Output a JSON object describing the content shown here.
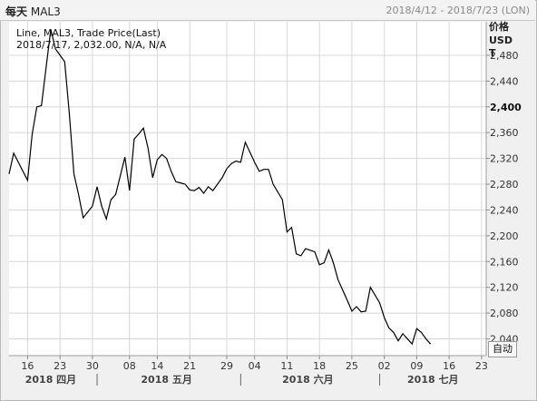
{
  "header": {
    "period": "每天",
    "symbol": "MAL3",
    "date_range": "2018/4/12 - 2018/7/23 (LON)"
  },
  "legend": {
    "line1": "Line, MAL3, Trade Price(Last)",
    "line2": "2018/7/17, 2,032.00, N/A, N/A"
  },
  "axis_units": [
    "价格",
    "USD",
    "T"
  ],
  "auto_button_label": "自动",
  "colors": {
    "line": "#000000",
    "grid": "#d8d8d8",
    "plot_bg": "#ffffff",
    "page_bg": "#f0f0f0"
  },
  "chart_data": {
    "type": "line",
    "title": "",
    "xlabel": "",
    "ylabel": "价格 USD T",
    "ylim": [
      2014,
      2532
    ],
    "y_ticks": [
      2040,
      2080,
      2120,
      2160,
      2200,
      2240,
      2280,
      2320,
      2360,
      2400,
      2440,
      2480
    ],
    "y_tick_labels": [
      "2,040",
      "2,080",
      "2,120",
      "2,160",
      "2,200",
      "2,240",
      "2,280",
      "2,320",
      "2,360",
      "2,400",
      "2,440",
      "2,480"
    ],
    "y_bold_tick": "2,400",
    "grid": true,
    "x_range": [
      "2018-04-12",
      "2018-07-24"
    ],
    "x_ticks": [
      {
        "date": "2018-04-16",
        "label": "16"
      },
      {
        "date": "2018-04-23",
        "label": "23"
      },
      {
        "date": "2018-04-30",
        "label": "30"
      },
      {
        "date": "2018-05-08",
        "label": "08"
      },
      {
        "date": "2018-05-14",
        "label": "14"
      },
      {
        "date": "2018-05-21",
        "label": "21"
      },
      {
        "date": "2018-05-29",
        "label": "29"
      },
      {
        "date": "2018-06-04",
        "label": "04"
      },
      {
        "date": "2018-06-11",
        "label": "11"
      },
      {
        "date": "2018-06-18",
        "label": "18"
      },
      {
        "date": "2018-06-25",
        "label": "25"
      },
      {
        "date": "2018-07-02",
        "label": "02"
      },
      {
        "date": "2018-07-09",
        "label": "09"
      },
      {
        "date": "2018-07-16",
        "label": "16"
      },
      {
        "date": "2018-07-23",
        "label": "23"
      }
    ],
    "months": [
      {
        "label": "2018 四月",
        "start": "2018-04-12",
        "end": "2018-04-30"
      },
      {
        "label": "2018 五月",
        "start": "2018-05-01",
        "end": "2018-05-31"
      },
      {
        "label": "2018 六月",
        "start": "2018-06-01",
        "end": "2018-06-30"
      },
      {
        "label": "2018 七月",
        "start": "2018-07-01",
        "end": "2018-07-24"
      }
    ],
    "series": [
      {
        "points": [
          [
            "2018-04-12",
            2296
          ],
          [
            "2018-04-13",
            2328
          ],
          [
            "2018-04-16",
            2286
          ],
          [
            "2018-04-17",
            2358
          ],
          [
            "2018-04-18",
            2400
          ],
          [
            "2018-04-19",
            2402
          ],
          [
            "2018-04-20",
            2462
          ],
          [
            "2018-04-21",
            2520
          ],
          [
            "2018-04-22",
            2490
          ],
          [
            "2018-04-23",
            2480
          ],
          [
            "2018-04-24",
            2470
          ],
          [
            "2018-04-25",
            2390
          ],
          [
            "2018-04-26",
            2296
          ],
          [
            "2018-04-27",
            2264
          ],
          [
            "2018-04-28",
            2228
          ],
          [
            "2018-04-30",
            2246
          ],
          [
            "2018-05-01",
            2276
          ],
          [
            "2018-05-02",
            2246
          ],
          [
            "2018-05-03",
            2226
          ],
          [
            "2018-05-04",
            2256
          ],
          [
            "2018-05-05",
            2264
          ],
          [
            "2018-05-07",
            2322
          ],
          [
            "2018-05-08",
            2270
          ],
          [
            "2018-05-09",
            2350
          ],
          [
            "2018-05-10",
            2358
          ],
          [
            "2018-05-11",
            2367
          ],
          [
            "2018-05-12",
            2336
          ],
          [
            "2018-05-13",
            2290
          ],
          [
            "2018-05-14",
            2318
          ],
          [
            "2018-05-15",
            2326
          ],
          [
            "2018-05-16",
            2320
          ],
          [
            "2018-05-17",
            2300
          ],
          [
            "2018-05-18",
            2284
          ],
          [
            "2018-05-20",
            2280
          ],
          [
            "2018-05-21",
            2271
          ],
          [
            "2018-05-22",
            2270
          ],
          [
            "2018-05-23",
            2275
          ],
          [
            "2018-05-24",
            2266
          ],
          [
            "2018-05-25",
            2276
          ],
          [
            "2018-05-26",
            2270
          ],
          [
            "2018-05-28",
            2290
          ],
          [
            "2018-05-29",
            2304
          ],
          [
            "2018-05-30",
            2312
          ],
          [
            "2018-05-31",
            2316
          ],
          [
            "2018-06-01",
            2314
          ],
          [
            "2018-06-02",
            2345
          ],
          [
            "2018-06-04",
            2314
          ],
          [
            "2018-06-05",
            2300
          ],
          [
            "2018-06-06",
            2303
          ],
          [
            "2018-06-07",
            2303
          ],
          [
            "2018-06-08",
            2280
          ],
          [
            "2018-06-10",
            2256
          ],
          [
            "2018-06-11",
            2206
          ],
          [
            "2018-06-12",
            2213
          ],
          [
            "2018-06-13",
            2172
          ],
          [
            "2018-06-14",
            2169
          ],
          [
            "2018-06-15",
            2180
          ],
          [
            "2018-06-17",
            2175
          ],
          [
            "2018-06-18",
            2155
          ],
          [
            "2018-06-19",
            2158
          ],
          [
            "2018-06-20",
            2178
          ],
          [
            "2018-06-21",
            2158
          ],
          [
            "2018-06-22",
            2132
          ],
          [
            "2018-06-24",
            2100
          ],
          [
            "2018-06-25",
            2083
          ],
          [
            "2018-06-26",
            2090
          ],
          [
            "2018-06-27",
            2082
          ],
          [
            "2018-06-28",
            2083
          ],
          [
            "2018-06-29",
            2120
          ],
          [
            "2018-07-01",
            2096
          ],
          [
            "2018-07-02",
            2073
          ],
          [
            "2018-07-03",
            2057
          ],
          [
            "2018-07-04",
            2050
          ],
          [
            "2018-07-05",
            2037
          ],
          [
            "2018-07-06",
            2048
          ],
          [
            "2018-07-08",
            2032
          ],
          [
            "2018-07-09",
            2056
          ],
          [
            "2018-07-10",
            2050
          ],
          [
            "2018-07-11",
            2040
          ],
          [
            "2018-07-12",
            2032
          ]
        ]
      }
    ]
  }
}
